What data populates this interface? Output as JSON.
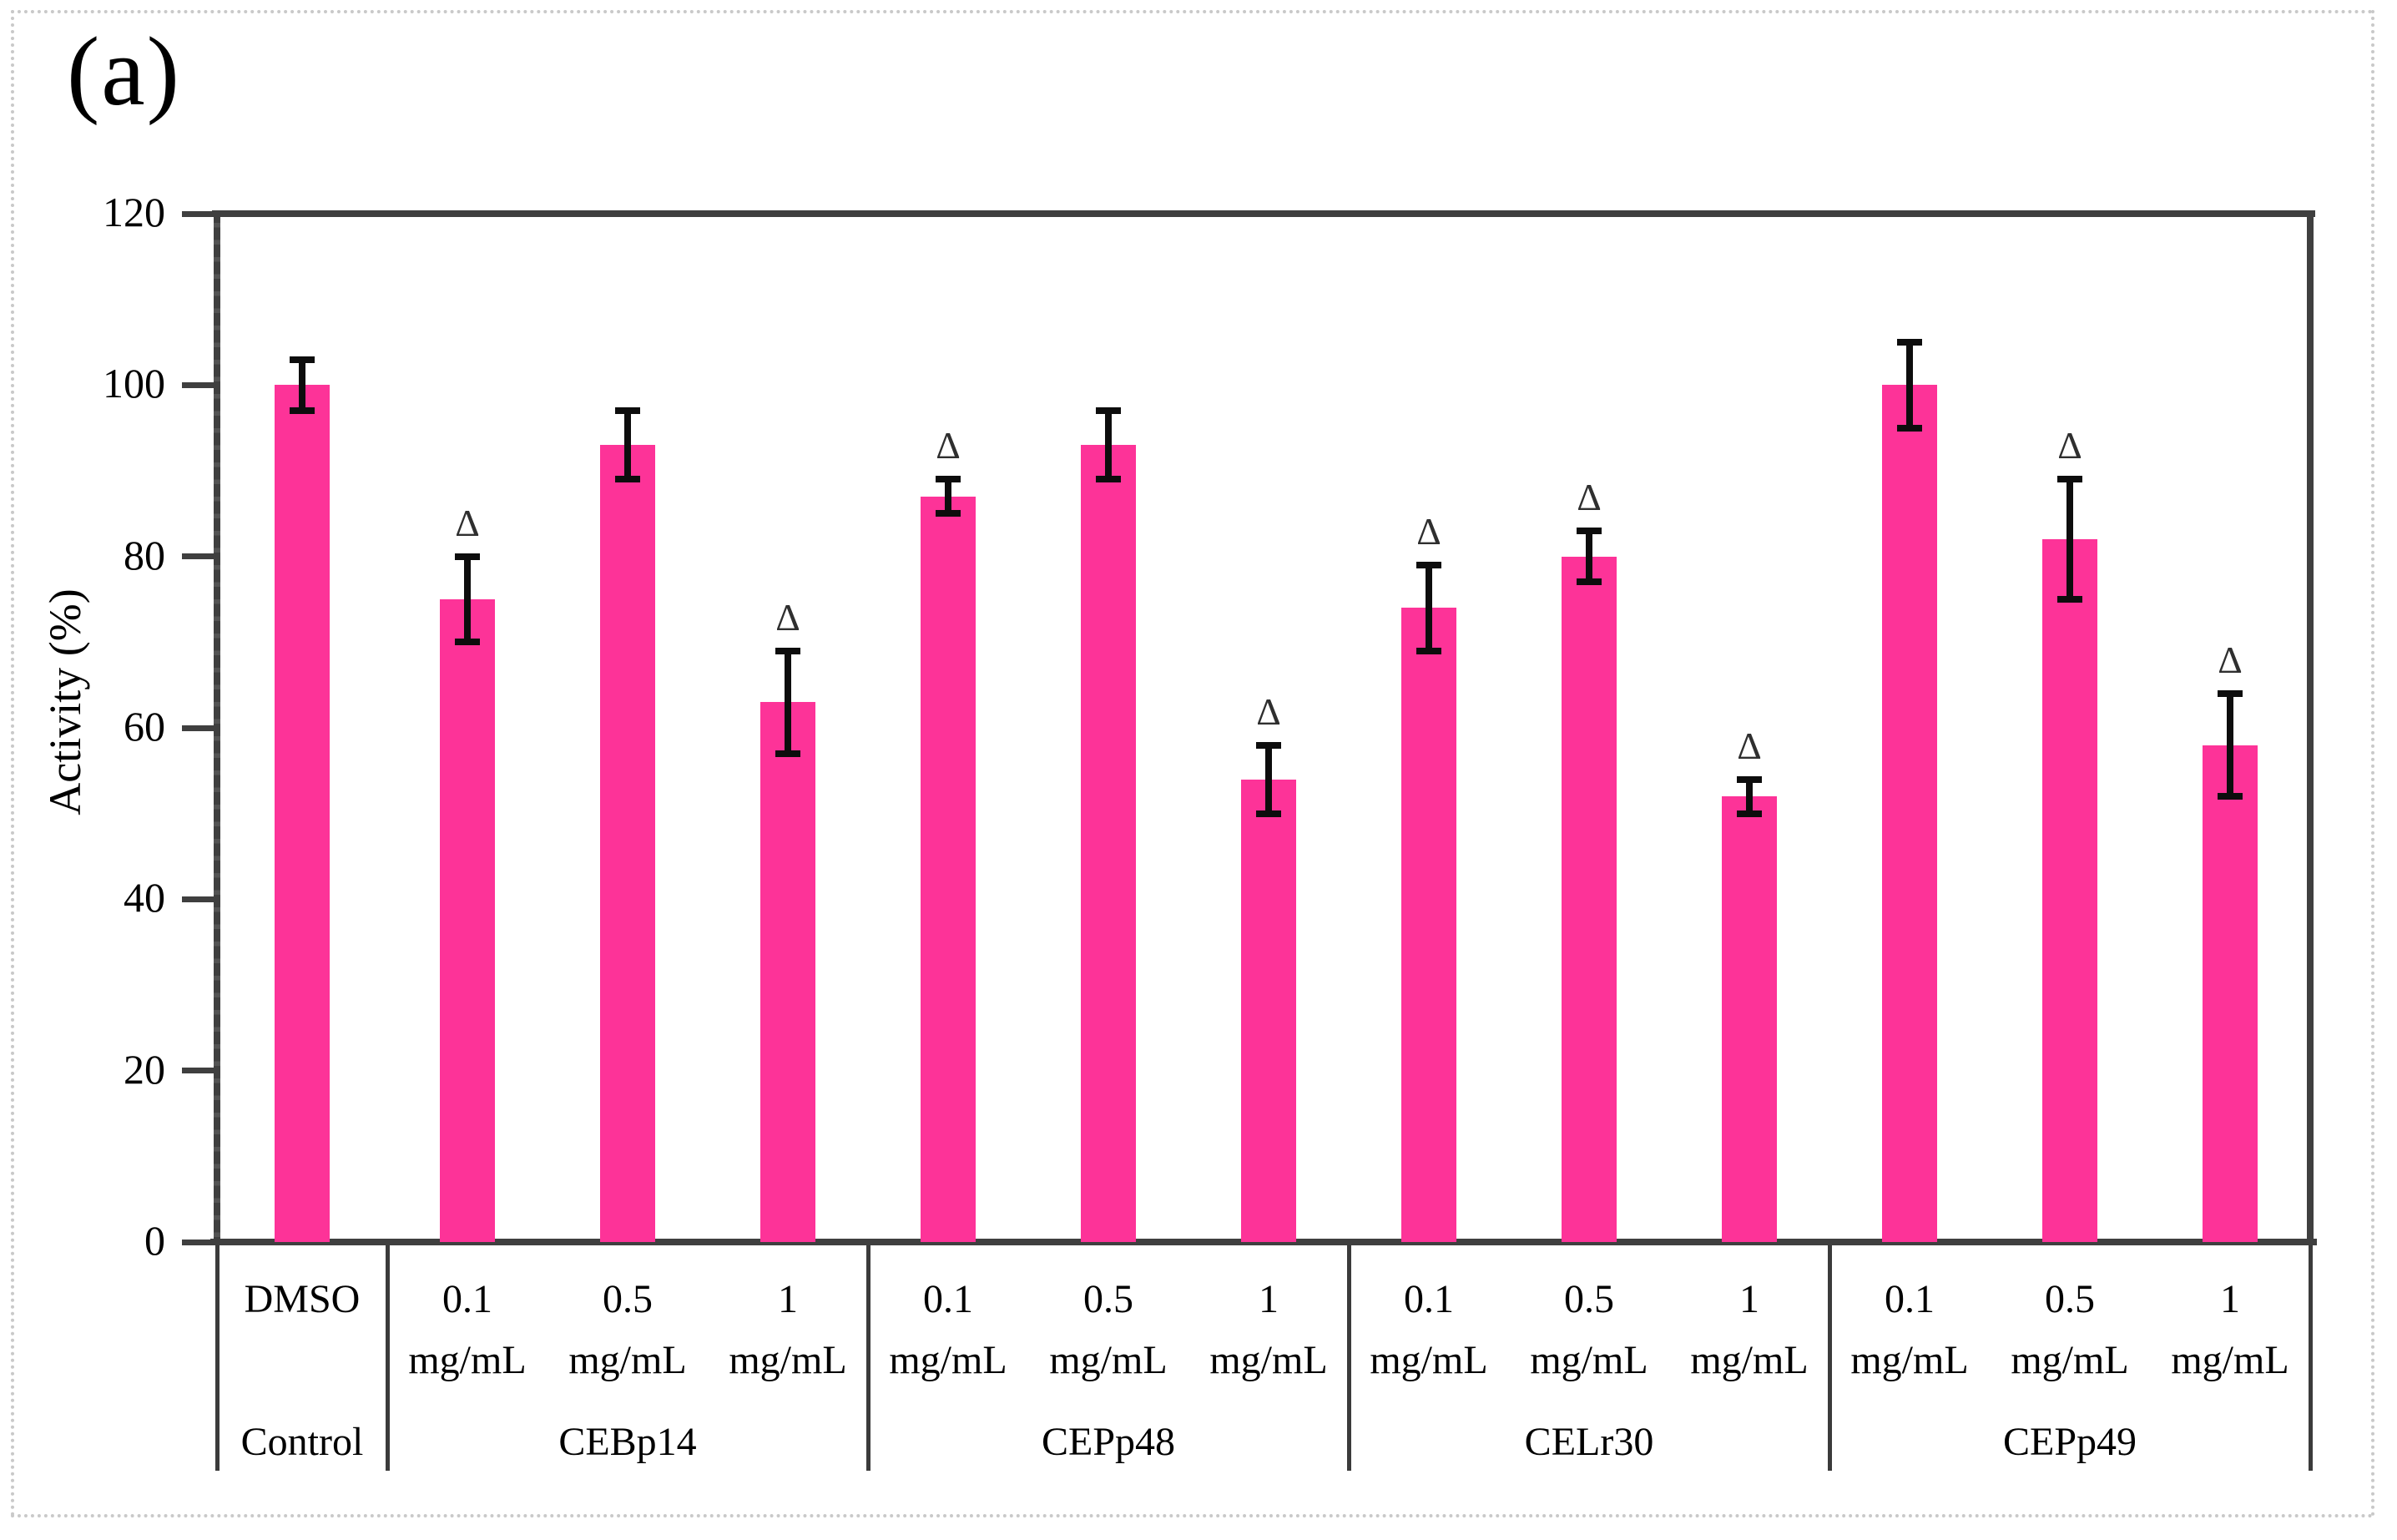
{
  "figure": {
    "panel_label": "(a)",
    "background_color": "#ffffff",
    "border_color": "#c9c9c9"
  },
  "y_axis": {
    "title": "Activity (%)",
    "min": 0,
    "max": 120,
    "tick_step": 20,
    "tick_labels": [
      "0",
      "20",
      "40",
      "60",
      "80",
      "100",
      "120"
    ]
  },
  "x_axis": {
    "unit_label": "mg/mL",
    "group_labels": [
      "Control",
      "CEBp14",
      "CEPp48",
      "CELr30",
      "CEPp49"
    ]
  },
  "chart_data": {
    "type": "bar",
    "title": "(a)",
    "xlabel": "",
    "ylabel": "Activity (%)",
    "ylim": [
      0,
      120
    ],
    "yticks": [
      0,
      20,
      40,
      60,
      80,
      100,
      120
    ],
    "grid": false,
    "legend": false,
    "bar_color": "#fd3398",
    "error_bar_color": "#0d0d0d",
    "axis_color": "#3f3f3f",
    "significance_marker": "Δ",
    "groups": [
      {
        "name": "Control",
        "bars": [
          {
            "label": "DMSO",
            "label_line2": "",
            "value": 100,
            "error": 3,
            "significant": false
          }
        ]
      },
      {
        "name": "CEBp14",
        "bars": [
          {
            "label": "0.1",
            "label_line2": "mg/mL",
            "value": 75,
            "error": 5,
            "significant": true
          },
          {
            "label": "0.5",
            "label_line2": "mg/mL",
            "value": 93,
            "error": 4,
            "significant": false
          },
          {
            "label": "1",
            "label_line2": "mg/mL",
            "value": 63,
            "error": 6,
            "significant": true
          }
        ]
      },
      {
        "name": "CEPp48",
        "bars": [
          {
            "label": "0.1",
            "label_line2": "mg/mL",
            "value": 87,
            "error": 2,
            "significant": true
          },
          {
            "label": "0.5",
            "label_line2": "mg/mL",
            "value": 93,
            "error": 4,
            "significant": false
          },
          {
            "label": "1",
            "label_line2": "mg/mL",
            "value": 54,
            "error": 4,
            "significant": true
          }
        ]
      },
      {
        "name": "CELr30",
        "bars": [
          {
            "label": "0.1",
            "label_line2": "mg/mL",
            "value": 74,
            "error": 5,
            "significant": true
          },
          {
            "label": "0.5",
            "label_line2": "mg/mL",
            "value": 80,
            "error": 3,
            "significant": true
          },
          {
            "label": "1",
            "label_line2": "mg/mL",
            "value": 52,
            "error": 2,
            "significant": true
          }
        ]
      },
      {
        "name": "CEPp49",
        "bars": [
          {
            "label": "0.1",
            "label_line2": "mg/mL",
            "value": 100,
            "error": 5,
            "significant": false
          },
          {
            "label": "0.5",
            "label_line2": "mg/mL",
            "value": 82,
            "error": 7,
            "significant": true
          },
          {
            "label": "1",
            "label_line2": "mg/mL",
            "value": 58,
            "error": 6,
            "significant": true
          }
        ]
      }
    ]
  }
}
